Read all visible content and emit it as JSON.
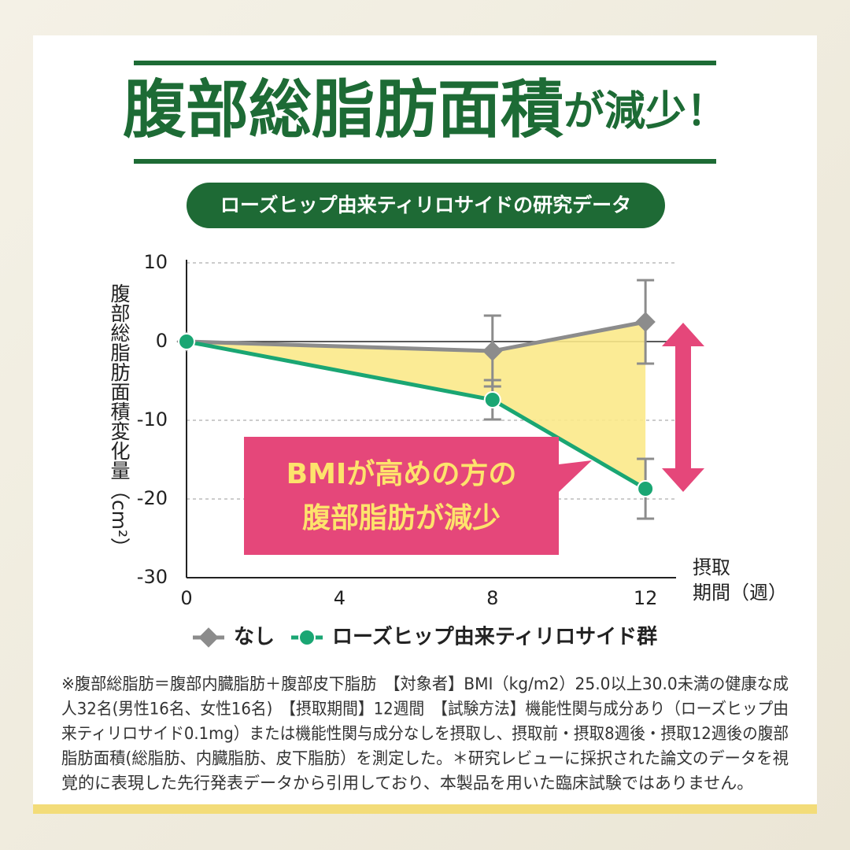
{
  "chart_data": {
    "type": "line",
    "title_parts": [
      "腹部総脂肪面積",
      "が減少！"
    ],
    "subtitle": "ローズヒップ由来ティリロサイドの研究データ",
    "y_label": "腹部総脂肪面積変化量（cm²）",
    "x_label_lines": [
      "摂取",
      "期間（週）"
    ],
    "annotation_lines": [
      "BMIが高めの方の",
      "腹部脂肪が減少"
    ],
    "x": [
      0,
      8,
      12
    ],
    "series": [
      {
        "name": "なし",
        "color": "#8c8c8c",
        "marker": "diamond",
        "values": [
          0,
          -1.2,
          2.5
        ],
        "errors": [
          null,
          4.5,
          5.3
        ]
      },
      {
        "name": "ローズヒップ由来ティリロサイド群",
        "color": "#1aa673",
        "marker": "circle",
        "values": [
          0,
          -7.4,
          -18.7
        ],
        "errors": [
          null,
          2.5,
          3.8
        ]
      }
    ],
    "xlim": [
      0,
      12.8
    ],
    "xticks": [
      0,
      4,
      8,
      12
    ],
    "ylim": [
      -30,
      10
    ],
    "yticks": [
      -30,
      -20,
      -10,
      0,
      10
    ],
    "grid": true,
    "fill_between_color": "#fbe98a"
  },
  "footnote": {
    "lines": [
      "※腹部総脂肪＝腹部内臓脂肪＋腹部皮下脂肪　【対象者】BMI（kg/m2）25.0以上30.0未満の健康な成",
      "人32名(男性16名、女性16名)　【摂取期間】12週間　【試験方法】機能性関与成分あり（ローズヒップ由",
      "来ティリロサイド0.1mg）または機能性関与成分なしを摂取し、摂取前・摂取8週後・摂取12週後の腹部",
      "脂肪面積(総脂肪、内臓脂肪、皮下脂肪）を測定した。＊研究レビューに採択された論文のデータを視",
      "覚的に表現した先行発表データから引用しており、本製品を用いた臨床試験ではありません。"
    ]
  }
}
